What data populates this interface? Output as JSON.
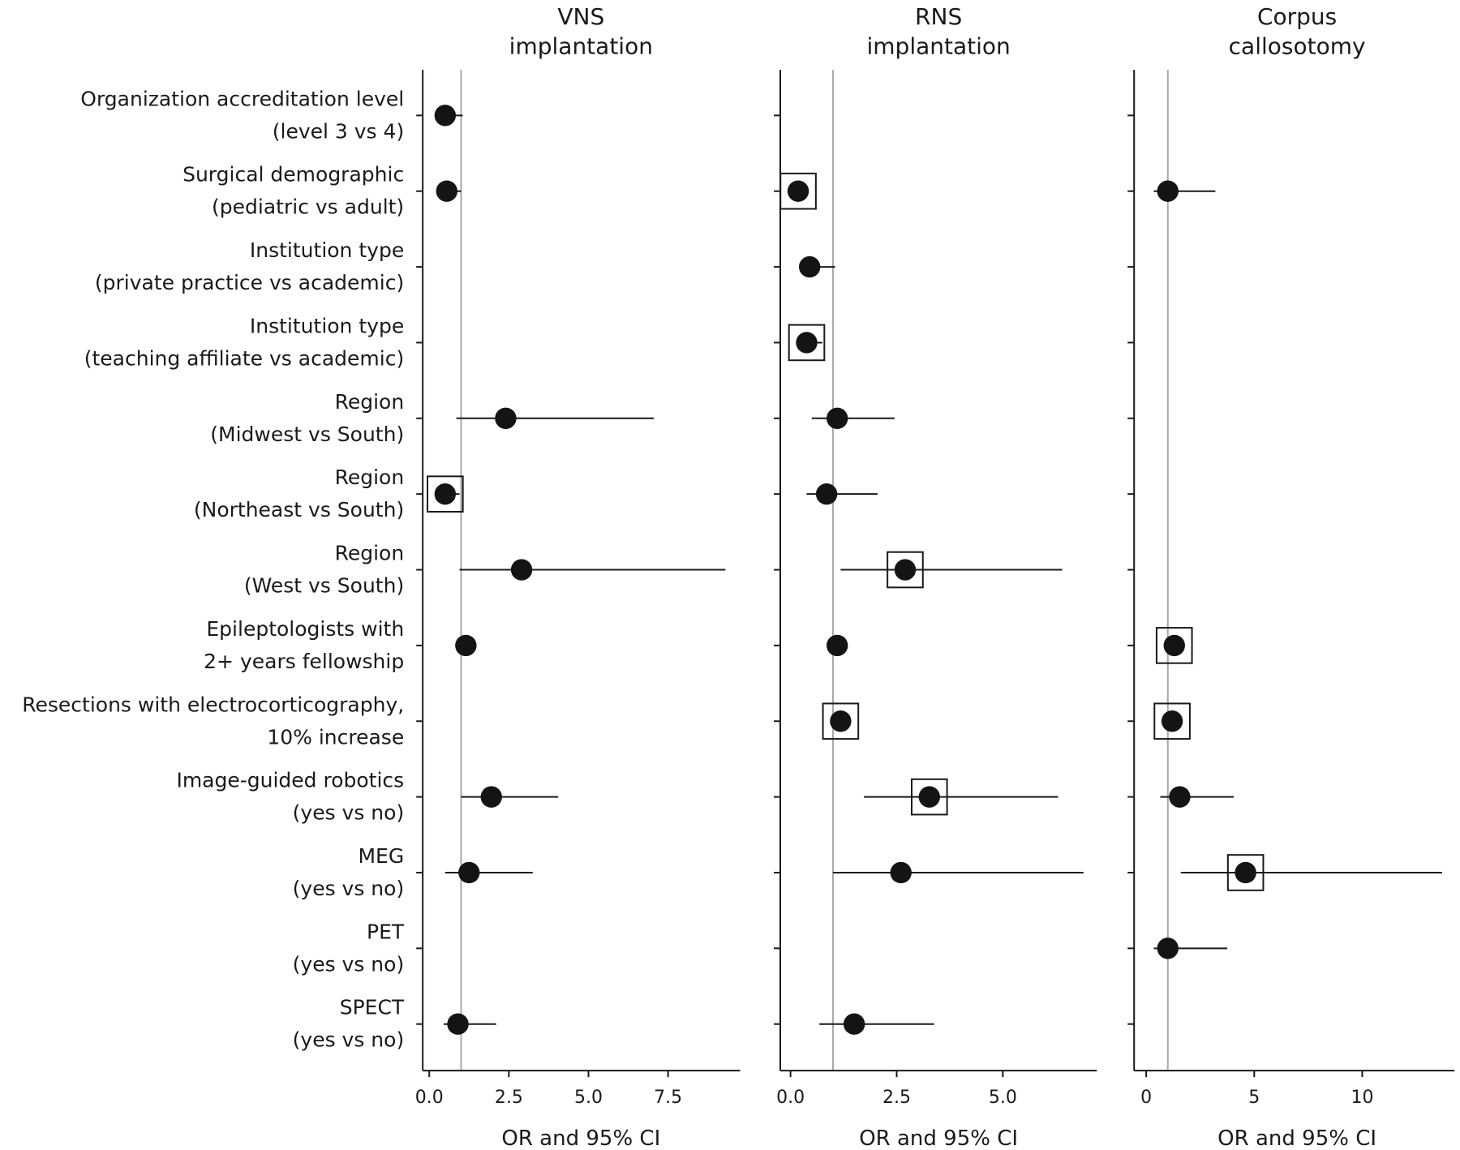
{
  "chart_data": {
    "type": "forest",
    "row_labels": [
      [
        "Organization accreditation level",
        "(level 3 vs 4)"
      ],
      [
        "Surgical demographic",
        "(pediatric vs adult)"
      ],
      [
        "Institution type",
        "(private practice vs academic)"
      ],
      [
        "Institution type",
        "(teaching affiliate vs academic)"
      ],
      [
        "Region",
        "(Midwest vs South)"
      ],
      [
        "Region",
        "(Northeast vs South)"
      ],
      [
        "Region",
        "(West vs South)"
      ],
      [
        "Epileptologists with",
        "2+ years fellowship"
      ],
      [
        "Resections with electrocorticography,",
        "10% increase"
      ],
      [
        "Image-guided robotics",
        "(yes vs no)"
      ],
      [
        "MEG",
        "(yes vs no)"
      ],
      [
        "PET",
        "(yes vs no)"
      ],
      [
        "SPECT",
        "(yes vs no)"
      ]
    ],
    "reference_line": 1,
    "panels": [
      {
        "title": [
          "VNS",
          "implantation"
        ],
        "xlabel": "OR and 95% CI",
        "xlim": [
          -0.25,
          9.6
        ],
        "ticks": [
          0,
          2.5,
          5,
          7.5
        ],
        "tick_labels": [
          "0.0",
          "2.5",
          "5.0",
          "7.5"
        ],
        "points": [
          {
            "row": 0,
            "or": 0.5,
            "lo": 0.3,
            "hi": 1.05,
            "significant": false
          },
          {
            "row": 1,
            "or": 0.55,
            "lo": 0.4,
            "hi": 1.0,
            "significant": false
          },
          {
            "row": 4,
            "or": 2.4,
            "lo": 0.85,
            "hi": 7.05,
            "significant": false
          },
          {
            "row": 5,
            "or": 0.5,
            "lo": 0.35,
            "hi": 0.95,
            "significant": true
          },
          {
            "row": 6,
            "or": 2.9,
            "lo": 0.95,
            "hi": 9.3,
            "significant": false
          },
          {
            "row": 7,
            "or": 1.15,
            "lo": 1.1,
            "hi": 1.2,
            "significant": false
          },
          {
            "row": 9,
            "or": 1.95,
            "lo": 1.0,
            "hi": 4.05,
            "significant": false
          },
          {
            "row": 10,
            "or": 1.25,
            "lo": 0.5,
            "hi": 3.25,
            "significant": false
          },
          {
            "row": 12,
            "or": 0.9,
            "lo": 0.45,
            "hi": 2.1,
            "significant": false
          }
        ]
      },
      {
        "title": [
          "RNS",
          "implantation"
        ],
        "xlabel": "OR and 95% CI",
        "xlim": [
          -0.25,
          7.2
        ],
        "ticks": [
          0,
          2.5,
          5
        ],
        "tick_labels": [
          "0.0",
          "2.5",
          "5.0"
        ],
        "points": [
          {
            "row": 1,
            "or": 0.18,
            "lo": 0.1,
            "hi": 0.3,
            "significant": true
          },
          {
            "row": 2,
            "or": 0.45,
            "lo": 0.25,
            "hi": 1.05,
            "significant": false
          },
          {
            "row": 3,
            "or": 0.38,
            "lo": 0.3,
            "hi": 0.75,
            "significant": true
          },
          {
            "row": 4,
            "or": 1.1,
            "lo": 0.5,
            "hi": 2.45,
            "significant": false
          },
          {
            "row": 5,
            "or": 0.85,
            "lo": 0.38,
            "hi": 2.05,
            "significant": false
          },
          {
            "row": 6,
            "or": 2.7,
            "lo": 1.18,
            "hi": 6.4,
            "significant": true
          },
          {
            "row": 7,
            "or": 1.1,
            "lo": 1.05,
            "hi": 1.15,
            "significant": false
          },
          {
            "row": 8,
            "or": 1.18,
            "lo": 1.1,
            "hi": 1.25,
            "significant": true
          },
          {
            "row": 9,
            "or": 3.27,
            "lo": 1.73,
            "hi": 6.3,
            "significant": true
          },
          {
            "row": 10,
            "or": 2.6,
            "lo": 1.0,
            "hi": 6.9,
            "significant": false
          },
          {
            "row": 12,
            "or": 1.5,
            "lo": 0.68,
            "hi": 3.38,
            "significant": false
          }
        ]
      },
      {
        "title": [
          "Corpus",
          "callosotomy"
        ],
        "xlabel": "OR and 95% CI",
        "xlim": [
          -0.5,
          14.2
        ],
        "ticks": [
          0,
          5,
          10
        ],
        "tick_labels": [
          "0",
          "5",
          "10"
        ],
        "points": [
          {
            "row": 1,
            "or": 1.0,
            "lo": 0.35,
            "hi": 3.2,
            "significant": false
          },
          {
            "row": 7,
            "or": 1.3,
            "lo": 1.2,
            "hi": 1.4,
            "significant": true
          },
          {
            "row": 8,
            "or": 1.2,
            "lo": 1.1,
            "hi": 1.3,
            "significant": true
          },
          {
            "row": 9,
            "or": 1.55,
            "lo": 0.65,
            "hi": 4.05,
            "significant": false
          },
          {
            "row": 10,
            "or": 4.6,
            "lo": 1.6,
            "hi": 13.7,
            "significant": true
          },
          {
            "row": 11,
            "or": 1.0,
            "lo": 0.35,
            "hi": 3.75,
            "significant": false
          }
        ]
      }
    ],
    "legend": "boxed markers indicate statistically significant estimates"
  }
}
